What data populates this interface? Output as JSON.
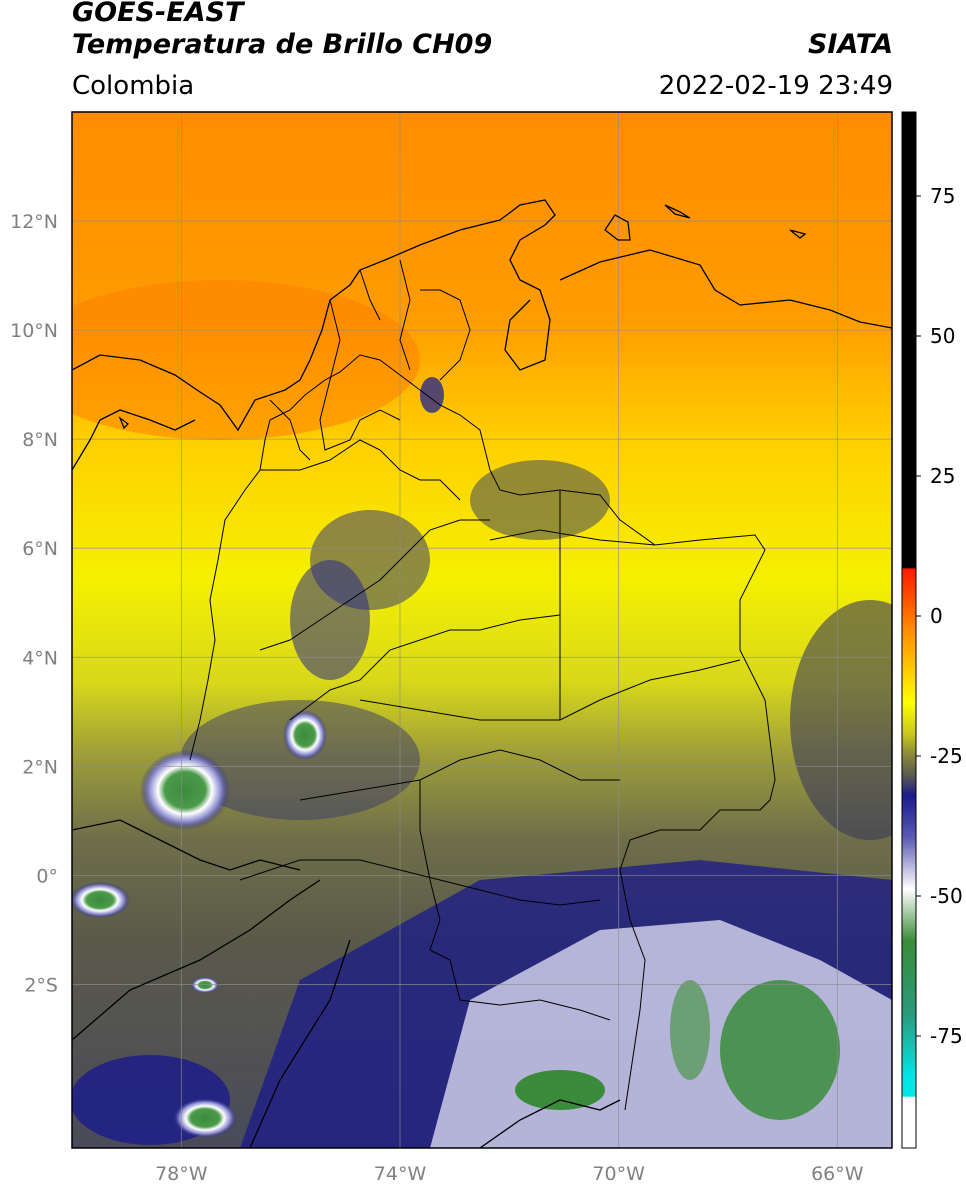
{
  "header": {
    "satellite": "GOES-EAST",
    "product": "Temperatura de Brillo CH09",
    "organization": "SIATA",
    "region": "Colombia",
    "datetime": "2022-02-19 23:49"
  },
  "map": {
    "lon_range": [
      -80,
      -65
    ],
    "lat_range": [
      -5,
      14
    ],
    "x_ticks": [
      {
        "value": -78,
        "label": "78°W"
      },
      {
        "value": -74,
        "label": "74°W"
      },
      {
        "value": -70,
        "label": "70°W"
      },
      {
        "value": -66,
        "label": "66°W"
      }
    ],
    "y_ticks": [
      {
        "value": 12,
        "label": "12°N"
      },
      {
        "value": 10,
        "label": "10°N"
      },
      {
        "value": 8,
        "label": "8°N"
      },
      {
        "value": 6,
        "label": "6°N"
      },
      {
        "value": 4,
        "label": "4°N"
      },
      {
        "value": 2,
        "label": "2°N"
      },
      {
        "value": 0,
        "label": "0°"
      },
      {
        "value": -2,
        "label": "2°S"
      }
    ],
    "grid": true
  },
  "colorbar": {
    "range": [
      -95,
      90
    ],
    "ticks": [
      {
        "value": 75,
        "label": "75"
      },
      {
        "value": 50,
        "label": "50"
      },
      {
        "value": 25,
        "label": "25"
      },
      {
        "value": 0,
        "label": "0"
      },
      {
        "value": -25,
        "label": "-25"
      },
      {
        "value": -50,
        "label": "-50"
      },
      {
        "value": -75,
        "label": "-75"
      }
    ],
    "colors": {
      "black": "#000000",
      "red": "#ff1a00",
      "orange": "#ff8c00",
      "yellow": "#ffff00",
      "olive": "#8a8a3a",
      "navy": "#1a1a8c",
      "white": "#ffffff",
      "green": "#3a8c3a",
      "cyan": "#00e5e5"
    }
  }
}
